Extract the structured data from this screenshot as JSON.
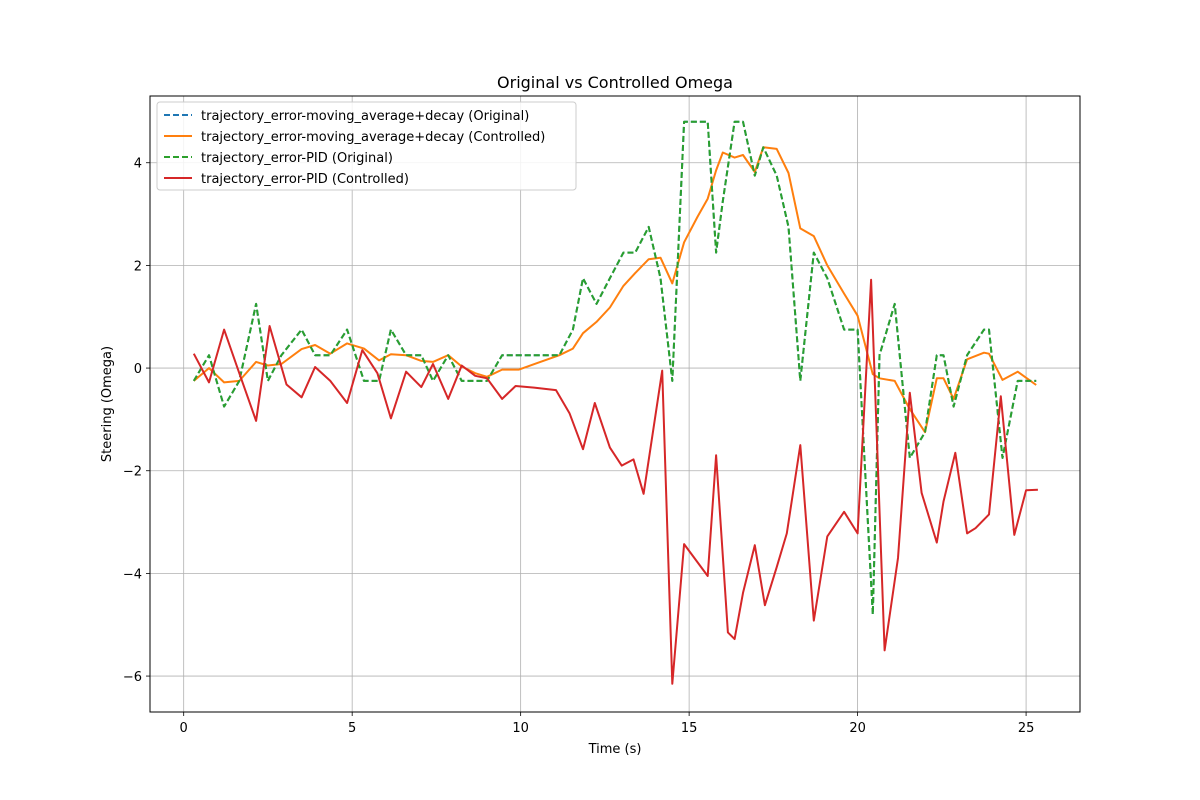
{
  "chart_data": {
    "type": "line",
    "title": "Original vs Controlled Omega",
    "xlabel": "Time (s)",
    "ylabel": "Steering (Omega)",
    "xlim": [
      -1.0,
      26.6
    ],
    "ylim": [
      -6.7,
      5.3
    ],
    "xticks": [
      0,
      5,
      10,
      15,
      20,
      25
    ],
    "yticks": [
      -6,
      -4,
      -2,
      0,
      2,
      4
    ],
    "xtick_labels": [
      "0",
      "5",
      "10",
      "15",
      "20",
      "25"
    ],
    "ytick_labels": [
      "−6",
      "−4",
      "−2",
      "0",
      "2",
      "4"
    ],
    "grid": true,
    "legend_position": "upper-left",
    "series": [
      {
        "name": "trajectory_error-moving_average+decay (Original)",
        "color": "#1f77b4",
        "dash": "dashed",
        "x": [
          0.3,
          0.75,
          1.2,
          1.65,
          2.15,
          2.5,
          2.9,
          3.5,
          3.9,
          4.35,
          4.85,
          5.35,
          5.8,
          6.15,
          6.6,
          7.05,
          7.4,
          7.85,
          8.25,
          8.65,
          9.0,
          9.45,
          9.95,
          10.5,
          11.15,
          11.55,
          11.85,
          12.25,
          12.65,
          13.05,
          13.4,
          13.8,
          14.15,
          14.5,
          14.85,
          15.25,
          15.55,
          15.8,
          16.0,
          16.35,
          16.6,
          16.95,
          17.2,
          17.6,
          17.95,
          18.3,
          18.7,
          19.1,
          19.6,
          20.0,
          20.45,
          20.65,
          21.1,
          21.55,
          22.0,
          22.35,
          22.55,
          22.85,
          23.25,
          23.75,
          23.9,
          24.3,
          24.75,
          25.3
        ],
        "y": [
          -0.25,
          0.25,
          -0.75,
          -0.25,
          1.25,
          -0.25,
          0.25,
          0.75,
          0.25,
          0.25,
          0.75,
          -0.25,
          -0.25,
          0.75,
          0.25,
          0.25,
          -0.25,
          0.25,
          -0.25,
          -0.25,
          -0.25,
          0.25,
          0.25,
          0.25,
          0.25,
          0.75,
          1.75,
          1.25,
          1.75,
          2.25,
          2.25,
          2.75,
          1.75,
          -0.25,
          4.8,
          4.8,
          4.8,
          2.25,
          3.25,
          4.8,
          4.8,
          3.75,
          4.3,
          3.75,
          2.75,
          -0.25,
          2.25,
          1.75,
          0.75,
          0.75,
          -4.8,
          0.25,
          1.25,
          -1.75,
          -1.25,
          0.25,
          0.25,
          -0.75,
          0.25,
          0.75,
          0.75,
          -1.75,
          -0.25,
          -0.25
        ]
      },
      {
        "name": "trajectory_error-moving_average+decay (Controlled)",
        "color": "#ff7f0e",
        "dash": "solid",
        "x": [
          0.3,
          0.75,
          1.2,
          1.65,
          2.15,
          2.5,
          2.9,
          3.5,
          3.9,
          4.35,
          4.85,
          5.35,
          5.8,
          6.15,
          6.6,
          7.05,
          7.4,
          7.85,
          8.25,
          8.65,
          9.0,
          9.45,
          9.95,
          10.5,
          11.15,
          11.55,
          11.85,
          12.25,
          12.65,
          13.05,
          13.4,
          13.8,
          14.15,
          14.5,
          14.85,
          15.25,
          15.55,
          15.8,
          16.0,
          16.35,
          16.6,
          16.95,
          17.2,
          17.6,
          17.95,
          18.3,
          18.7,
          19.1,
          19.6,
          20.0,
          20.45,
          20.65,
          21.1,
          21.55,
          22.0,
          22.35,
          22.55,
          22.85,
          23.25,
          23.75,
          23.9,
          24.3,
          24.75,
          25.3
        ],
        "y": [
          -0.25,
          0.0,
          -0.28,
          -0.25,
          0.12,
          0.05,
          0.08,
          0.37,
          0.45,
          0.28,
          0.48,
          0.38,
          0.15,
          0.27,
          0.25,
          0.14,
          0.12,
          0.25,
          0.03,
          -0.1,
          -0.17,
          -0.03,
          -0.03,
          0.1,
          0.25,
          0.38,
          0.68,
          0.9,
          1.18,
          1.6,
          1.85,
          2.12,
          2.15,
          1.65,
          2.45,
          2.95,
          3.3,
          3.85,
          4.2,
          4.1,
          4.15,
          3.82,
          4.3,
          4.27,
          3.8,
          2.72,
          2.57,
          2.0,
          1.45,
          1.02,
          -0.12,
          -0.2,
          -0.25,
          -0.8,
          -1.25,
          -0.2,
          -0.2,
          -0.6,
          0.17,
          0.3,
          0.28,
          -0.23,
          -0.07,
          -0.33
        ]
      },
      {
        "name": "trajectory_error-PID (Original)",
        "color": "#2ca02c",
        "dash": "dashed",
        "x": [
          0.3,
          0.75,
          1.2,
          1.65,
          2.15,
          2.5,
          2.9,
          3.5,
          3.9,
          4.35,
          4.85,
          5.35,
          5.8,
          6.15,
          6.6,
          7.05,
          7.4,
          7.85,
          8.25,
          8.65,
          9.0,
          9.45,
          9.95,
          10.5,
          11.15,
          11.55,
          11.85,
          12.25,
          12.65,
          13.05,
          13.4,
          13.8,
          14.15,
          14.5,
          14.85,
          15.25,
          15.55,
          15.8,
          16.0,
          16.35,
          16.6,
          16.95,
          17.2,
          17.6,
          17.95,
          18.3,
          18.7,
          19.1,
          19.6,
          20.0,
          20.45,
          20.65,
          21.1,
          21.55,
          22.0,
          22.35,
          22.55,
          22.85,
          23.25,
          23.75,
          23.9,
          24.3,
          24.75,
          25.3
        ],
        "y": [
          -0.25,
          0.25,
          -0.75,
          -0.25,
          1.25,
          -0.25,
          0.25,
          0.75,
          0.25,
          0.25,
          0.75,
          -0.25,
          -0.25,
          0.75,
          0.25,
          0.25,
          -0.25,
          0.25,
          -0.25,
          -0.25,
          -0.25,
          0.25,
          0.25,
          0.25,
          0.25,
          0.75,
          1.75,
          1.25,
          1.75,
          2.25,
          2.25,
          2.75,
          1.75,
          -0.25,
          4.8,
          4.8,
          4.8,
          2.25,
          3.25,
          4.8,
          4.8,
          3.75,
          4.3,
          3.75,
          2.75,
          -0.25,
          2.25,
          1.75,
          0.75,
          0.75,
          -4.8,
          0.25,
          1.25,
          -1.75,
          -1.25,
          0.25,
          0.25,
          -0.75,
          0.25,
          0.75,
          0.75,
          -1.75,
          -0.25,
          -0.25
        ]
      },
      {
        "name": "trajectory_error-PID (Controlled)",
        "color": "#d62728",
        "dash": "solid",
        "x": [
          0.3,
          0.75,
          1.2,
          1.65,
          2.15,
          2.55,
          3.05,
          3.5,
          3.9,
          4.35,
          4.85,
          5.3,
          5.75,
          6.15,
          6.6,
          7.05,
          7.4,
          7.85,
          8.25,
          8.65,
          9.0,
          9.45,
          9.85,
          10.4,
          11.05,
          11.45,
          11.85,
          12.2,
          12.65,
          13.0,
          13.35,
          13.65,
          14.2,
          14.5,
          14.85,
          15.55,
          15.8,
          16.15,
          16.35,
          16.6,
          16.95,
          17.25,
          17.6,
          17.9,
          18.3,
          18.7,
          19.1,
          19.6,
          20.0,
          20.4,
          20.8,
          21.2,
          21.55,
          21.9,
          22.35,
          22.55,
          22.9,
          23.25,
          23.5,
          23.9,
          24.25,
          24.65,
          25.0,
          25.35
        ],
        "y": [
          0.28,
          -0.28,
          0.75,
          -0.1,
          -1.03,
          0.82,
          -0.32,
          -0.57,
          0.02,
          -0.25,
          -0.68,
          0.35,
          -0.1,
          -0.98,
          -0.07,
          -0.37,
          0.08,
          -0.6,
          0.05,
          -0.15,
          -0.2,
          -0.6,
          -0.35,
          -0.38,
          -0.43,
          -0.88,
          -1.58,
          -0.68,
          -1.55,
          -1.9,
          -1.78,
          -2.45,
          -0.05,
          -6.15,
          -3.43,
          -4.05,
          -1.7,
          -5.15,
          -5.28,
          -4.38,
          -3.45,
          -4.62,
          -3.88,
          -3.22,
          -1.5,
          -4.92,
          -3.28,
          -2.8,
          -3.22,
          1.72,
          -5.5,
          -3.7,
          -0.48,
          -2.43,
          -3.4,
          -2.6,
          -1.65,
          -3.22,
          -3.12,
          -2.85,
          -0.55,
          -3.25,
          -2.38,
          -2.37
        ]
      }
    ]
  }
}
